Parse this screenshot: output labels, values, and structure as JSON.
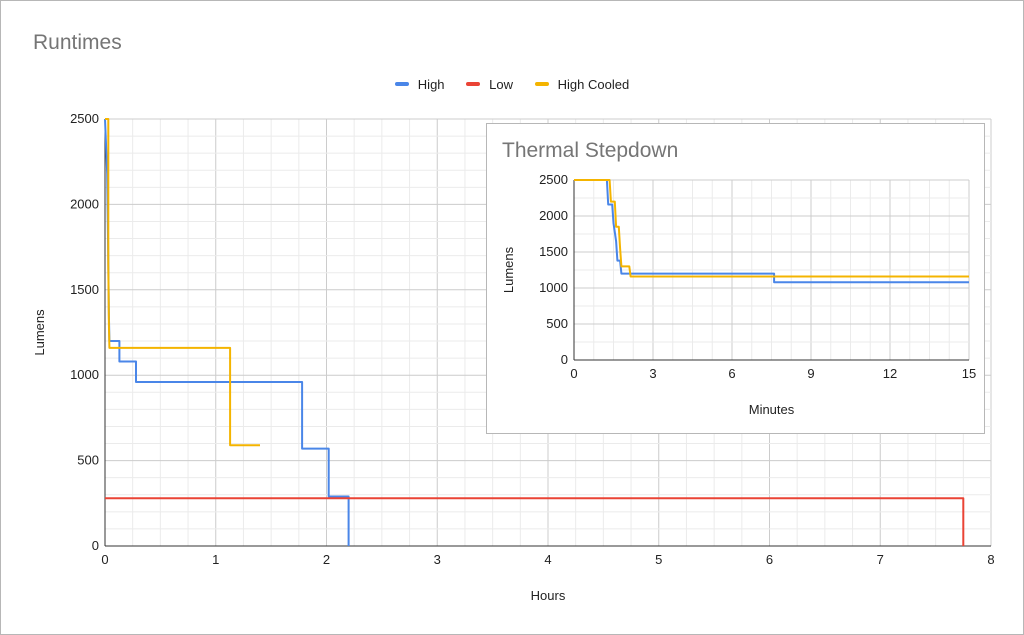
{
  "colors": {
    "High": "#4a86e8",
    "Low": "#ea4335",
    "High Cooled": "#f4b400"
  },
  "legend": [
    {
      "label": "High",
      "color": "#4a86e8"
    },
    {
      "label": "Low",
      "color": "#ea4335"
    },
    {
      "label": "High Cooled",
      "color": "#f4b400"
    }
  ],
  "chart_data": [
    {
      "type": "line",
      "title": "Runtimes",
      "xlabel": "Hours",
      "ylabel": "Lumens",
      "xlim": [
        0,
        8
      ],
      "ylim": [
        0,
        2500
      ],
      "xticks": [
        0,
        1,
        2,
        3,
        4,
        5,
        6,
        7,
        8
      ],
      "yticks": [
        0,
        500,
        1000,
        1500,
        2000,
        2500
      ],
      "grid": true,
      "legend_position": "top",
      "series": [
        {
          "name": "High",
          "points": [
            [
              0,
              2500
            ],
            [
              0.02,
              2180
            ],
            [
              0.025,
              1900
            ],
            [
              0.03,
              1650
            ],
            [
              0.035,
              1350
            ],
            [
              0.04,
              1200
            ],
            [
              0.13,
              1200
            ],
            [
              0.13,
              1080
            ],
            [
              0.28,
              1080
            ],
            [
              0.28,
              960
            ],
            [
              1.78,
              960
            ],
            [
              1.78,
              570
            ],
            [
              2.02,
              570
            ],
            [
              2.02,
              290
            ],
            [
              2.2,
              290
            ],
            [
              2.2,
              0
            ]
          ]
        },
        {
          "name": "Low",
          "points": [
            [
              0,
              280
            ],
            [
              7.75,
              280
            ],
            [
              7.75,
              0
            ]
          ]
        },
        {
          "name": "High Cooled",
          "points": [
            [
              0,
              2500
            ],
            [
              0.03,
              2500
            ],
            [
              0.03,
              1650
            ],
            [
              0.035,
              1300
            ],
            [
              0.04,
              1160
            ],
            [
              1.13,
              1160
            ],
            [
              1.13,
              590
            ],
            [
              1.4,
              590
            ]
          ]
        }
      ]
    },
    {
      "type": "line",
      "title": "Thermal Stepdown",
      "xlabel": "Minutes",
      "ylabel": "Lumens",
      "xlim": [
        0,
        15
      ],
      "ylim": [
        0,
        2500
      ],
      "xticks": [
        0,
        3,
        6,
        9,
        12,
        15
      ],
      "yticks": [
        0,
        500,
        1000,
        1500,
        2000,
        2500
      ],
      "grid": true,
      "series": [
        {
          "name": "High",
          "points": [
            [
              0,
              2500
            ],
            [
              1.25,
              2500
            ],
            [
              1.3,
              2160
            ],
            [
              1.45,
              2160
            ],
            [
              1.5,
              1900
            ],
            [
              1.6,
              1650
            ],
            [
              1.65,
              1380
            ],
            [
              1.75,
              1380
            ],
            [
              1.8,
              1200
            ],
            [
              7.6,
              1200
            ],
            [
              7.6,
              1080
            ],
            [
              15,
              1080
            ]
          ]
        },
        {
          "name": "High Cooled",
          "points": [
            [
              0,
              2500
            ],
            [
              1.35,
              2500
            ],
            [
              1.4,
              2200
            ],
            [
              1.55,
              2200
            ],
            [
              1.6,
              1850
            ],
            [
              1.7,
              1850
            ],
            [
              1.75,
              1550
            ],
            [
              1.8,
              1300
            ],
            [
              2.1,
              1300
            ],
            [
              2.15,
              1160
            ],
            [
              15,
              1160
            ]
          ]
        }
      ]
    }
  ]
}
